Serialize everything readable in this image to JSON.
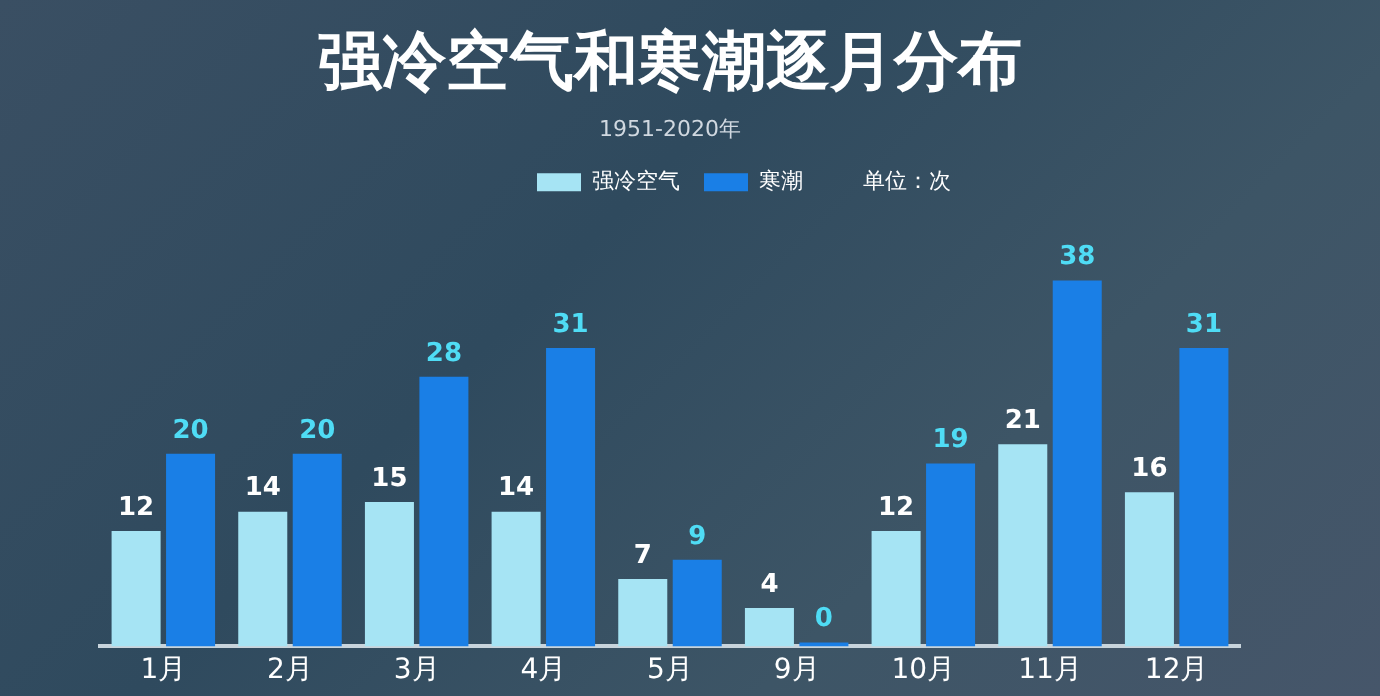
{
  "chart_data": {
    "type": "bar",
    "title": "强冷空气和寒潮逐月分布",
    "subtitle": "1951-2020年",
    "annotations": [
      "单位：次"
    ],
    "categories": [
      "1月",
      "2月",
      "3月",
      "4月",
      "5月",
      "9月",
      "10月",
      "11月",
      "12月"
    ],
    "series": [
      {
        "name": "强冷空气",
        "color": "#a6e4f4",
        "values": [
          12,
          14,
          15,
          14,
          7,
          4,
          12,
          21,
          16
        ]
      },
      {
        "name": "寒潮",
        "color": "#1a7fe6",
        "values": [
          20,
          20,
          28,
          31,
          9,
          0,
          19,
          38,
          31
        ]
      }
    ],
    "data_labels": true,
    "legend": "top",
    "grid": false
  }
}
